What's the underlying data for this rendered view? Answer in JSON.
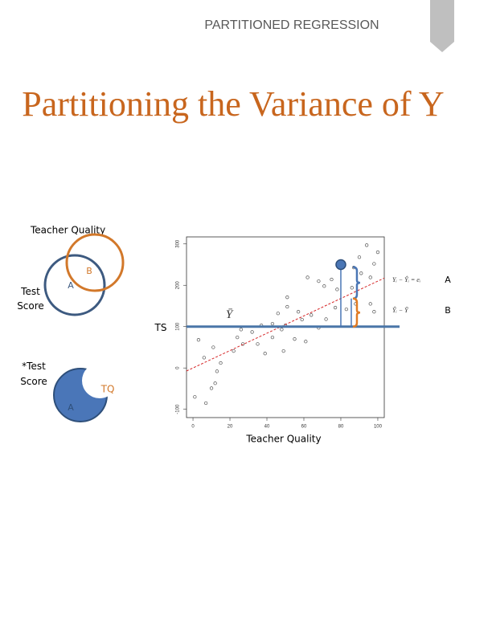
{
  "header": "PARTITIONED REGRESSION",
  "title": "Partitioning the Variance of Y",
  "venn": {
    "label": "Teacher Quality",
    "outcome_label": "Test Score",
    "regions": [
      "A",
      "B"
    ]
  },
  "residual": {
    "label": "*Test Score",
    "predictor_label": "TQ",
    "region": "A"
  },
  "chart_data": {
    "type": "scatter",
    "x_label": "Teacher Quality",
    "xlim": [
      -3.5,
      103.5
    ],
    "ylim": [
      -120,
      317
    ],
    "xticks": [
      0,
      20,
      40,
      60,
      80,
      100
    ],
    "yticks": [
      -100,
      0,
      100,
      200,
      300
    ],
    "x": [
      94,
      100,
      98,
      90,
      87,
      91,
      96,
      62,
      68,
      71,
      75,
      78,
      86,
      51,
      51,
      46,
      57,
      59,
      64,
      68,
      72,
      77,
      83,
      88,
      96,
      98,
      50,
      48,
      43,
      37,
      32,
      26,
      24,
      27,
      35,
      43,
      49,
      55,
      61,
      3,
      11,
      6,
      15,
      13,
      12,
      10,
      1,
      7,
      22,
      39
    ],
    "y": [
      297,
      280,
      252,
      268,
      243,
      229,
      219,
      219,
      210,
      198,
      214,
      190,
      194,
      171,
      148,
      132,
      136,
      117,
      128,
      97,
      118,
      146,
      142,
      155,
      155,
      136,
      103,
      93,
      107,
      103,
      87,
      93,
      74,
      58,
      58,
      74,
      41,
      70,
      64,
      68,
      50,
      25,
      12,
      -8,
      -37,
      -49,
      -70,
      -85,
      41,
      35
    ],
    "color": "#555555",
    "mean": 100,
    "mean_label": "Ȳ",
    "mean_axis_label": "TS",
    "mean_color": "#4a76a8",
    "fit": {
      "intercept": 0,
      "slope": 2.1,
      "color": "#d62728"
    },
    "highlight": {
      "x": 80,
      "y": 250,
      "color": "#4a76b5"
    },
    "annotations": [
      {
        "formula": "Yᵢ − Ŷᵢ = eᵢ",
        "label": "A",
        "color": "#4a76b5"
      },
      {
        "formula": "Ŷᵢ − Ȳ",
        "label": "B",
        "color": "#e07b24"
      }
    ]
  }
}
